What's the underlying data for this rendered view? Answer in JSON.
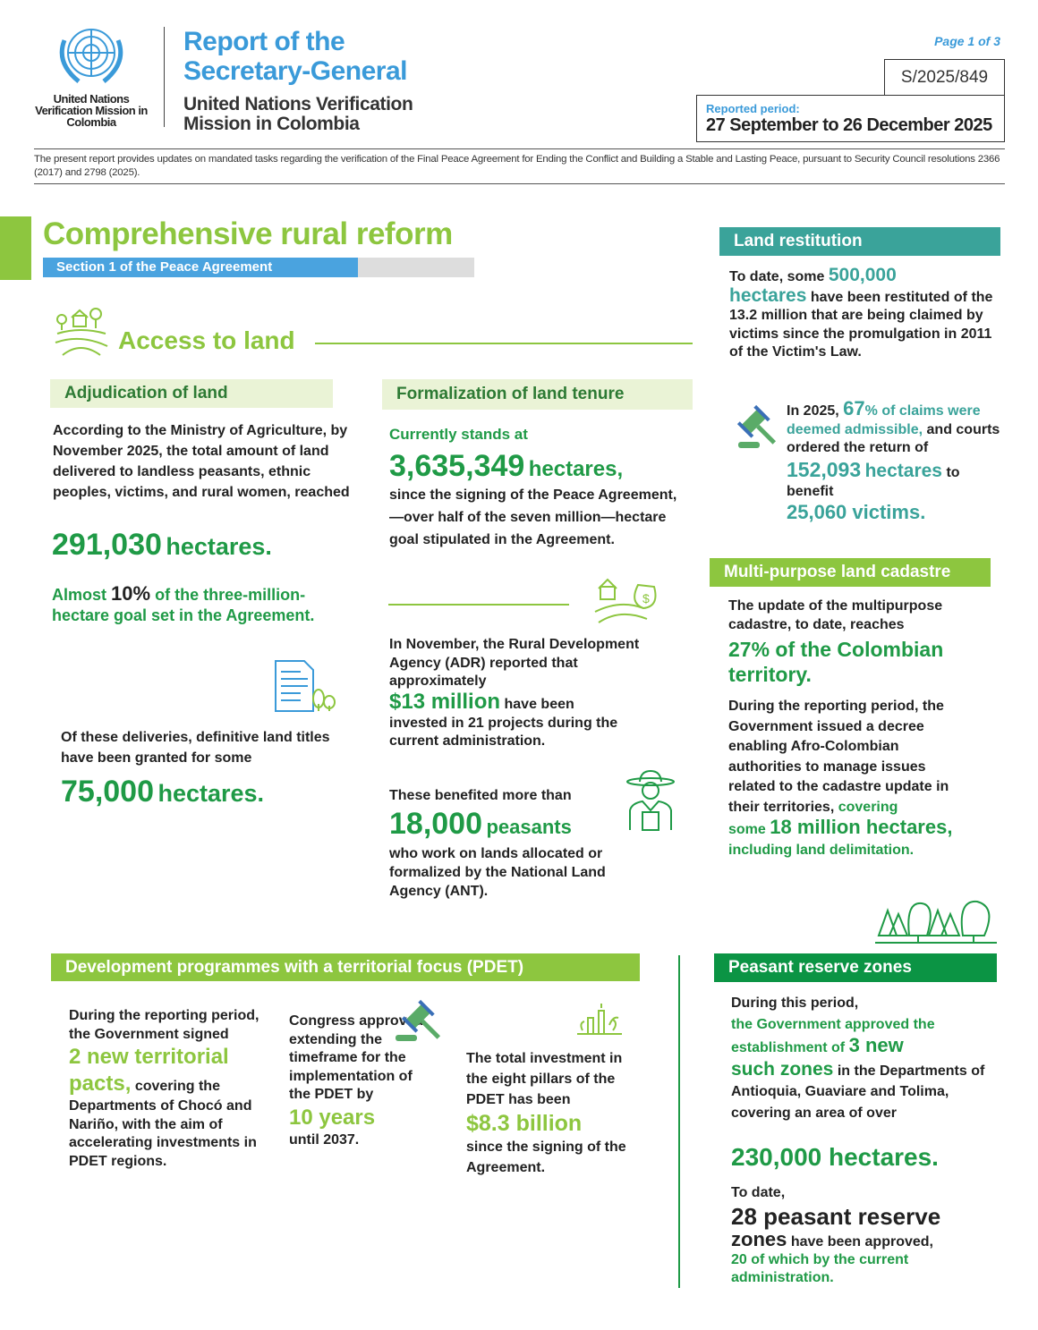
{
  "header": {
    "org": "United Nations Verification Mission in Colombia",
    "title1": "Report of the",
    "title2": "Secretary-General",
    "subtitle1": "United Nations Verification",
    "subtitle2": "Mission in Colombia",
    "page": "Page 1 of 3",
    "doc_symbol": "S/2025/849",
    "period_label": "Reported period:",
    "period": "27 September to 26 December 2025",
    "intro": "The present report provides updates on mandated tasks regarding the verification of the Final Peace Agreement for Ending the Conflict and Building a Stable and Lasting Peace, pursuant to Security Council resolutions 2366 (2017) and 2798 (2025)."
  },
  "section": {
    "title": "Comprehensive rural reform",
    "subtitle": "Section 1 of the Peace Agreement",
    "access": "Access to land"
  },
  "adjudication": {
    "title": "Adjudication of land",
    "p1": "According to the Ministry of Agriculture, by November 2025, the total amount of land delivered to landless peasants, ethnic peoples, victims, and rural women, reached",
    "v1": "291,030",
    "u1": "hectares.",
    "p2a": "Almost",
    "p2b": "10%",
    "p2c": "of the three-million-hectare goal set in the Agreement.",
    "p3": "Of these deliveries, definitive land titles have been granted for some",
    "v3": "75,000",
    "u3": "hectares."
  },
  "formalization": {
    "title": "Formalization of land tenure",
    "lead": "Currently stands at",
    "v1": "3,635,349",
    "u1": "hectares,",
    "p1": "since the signing of the Peace Agreement, —over half of the seven million—hectare goal stipulated in the Agreement.",
    "p2": "In November, the Rural Development Agency (ADR) reported that approximately",
    "v2": "$13 million",
    "p2b": "have been",
    "p2c": "invested in 21 projects during the current administration.",
    "p3": "These benefited more than",
    "v3": "18,000",
    "u3": "peasants",
    "p3b": "who work on lands allocated or formalized by the National Land Agency (ANT)."
  },
  "restitution": {
    "title": "Land restitution",
    "p1a": "To date, some",
    "v1": "500,000",
    "u1": "hectares",
    "p1b": "have been restituted of the 13.2 million that are being claimed by victims since the promulgation in 2011 of the Victim's Law.",
    "p2a": "In 2025,",
    "v2": "67",
    "p2b": "% of claims were deemed admissible,",
    "p2c": "and courts ordered the return of",
    "v3": "152,093",
    "u3": "hectares",
    "p2d": "to benefit",
    "v4": "25,060 victims."
  },
  "cadastre": {
    "title": "Multi-purpose land cadastre",
    "p1": "The update of the multipurpose cadastre, to date, reaches",
    "v1": "27",
    "u1": "% of the Colombian territory.",
    "p2": "During the reporting period, the Government issued a decree enabling Afro-Colombian authorities to manage issues related to the cadastre update in their territories,",
    "p2b": "covering",
    "p2c": "some",
    "v2": "18 million hectares,",
    "p2d": "including land delimitation."
  },
  "pdet": {
    "title": "Development programmes with a territorial focus (PDET)",
    "c1a": "During the reporting period, the Government signed",
    "c1v": "2 new territorial pacts,",
    "c1b": "covering the Departments of Chocó and Nariño, with the aim of accelerating investments in PDET regions.",
    "c2a": "Congress approved extending the timeframe for the implementation of the PDET by",
    "c2v": "10 years",
    "c2b": "until 2037.",
    "c3a": "The total investment in the eight pillars of the PDET has been",
    "c3v": "$8.3 billion",
    "c3b": "since the signing of the Agreement."
  },
  "reserve": {
    "title": "Peasant reserve zones",
    "p1a": "During this period,",
    "p1b": "the Government approved the establishment of",
    "p1v": "3 new",
    "p1c": "such zones",
    "p1d": "in the Departments of Antioquia, Guaviare and Tolima, covering an area of over",
    "v1": "230,000 hectares.",
    "p2a": "To date,",
    "v2": "28 peasant reserve",
    "v2b": "zones",
    "p2b": "have been approved,",
    "p2c": "20 of which by the current administration."
  },
  "colors": {
    "blue": "#3a9ad9",
    "lime": "#8dc63f",
    "green": "#1f9a46",
    "teal": "#3aa39a",
    "dark_green": "#0b9444"
  }
}
